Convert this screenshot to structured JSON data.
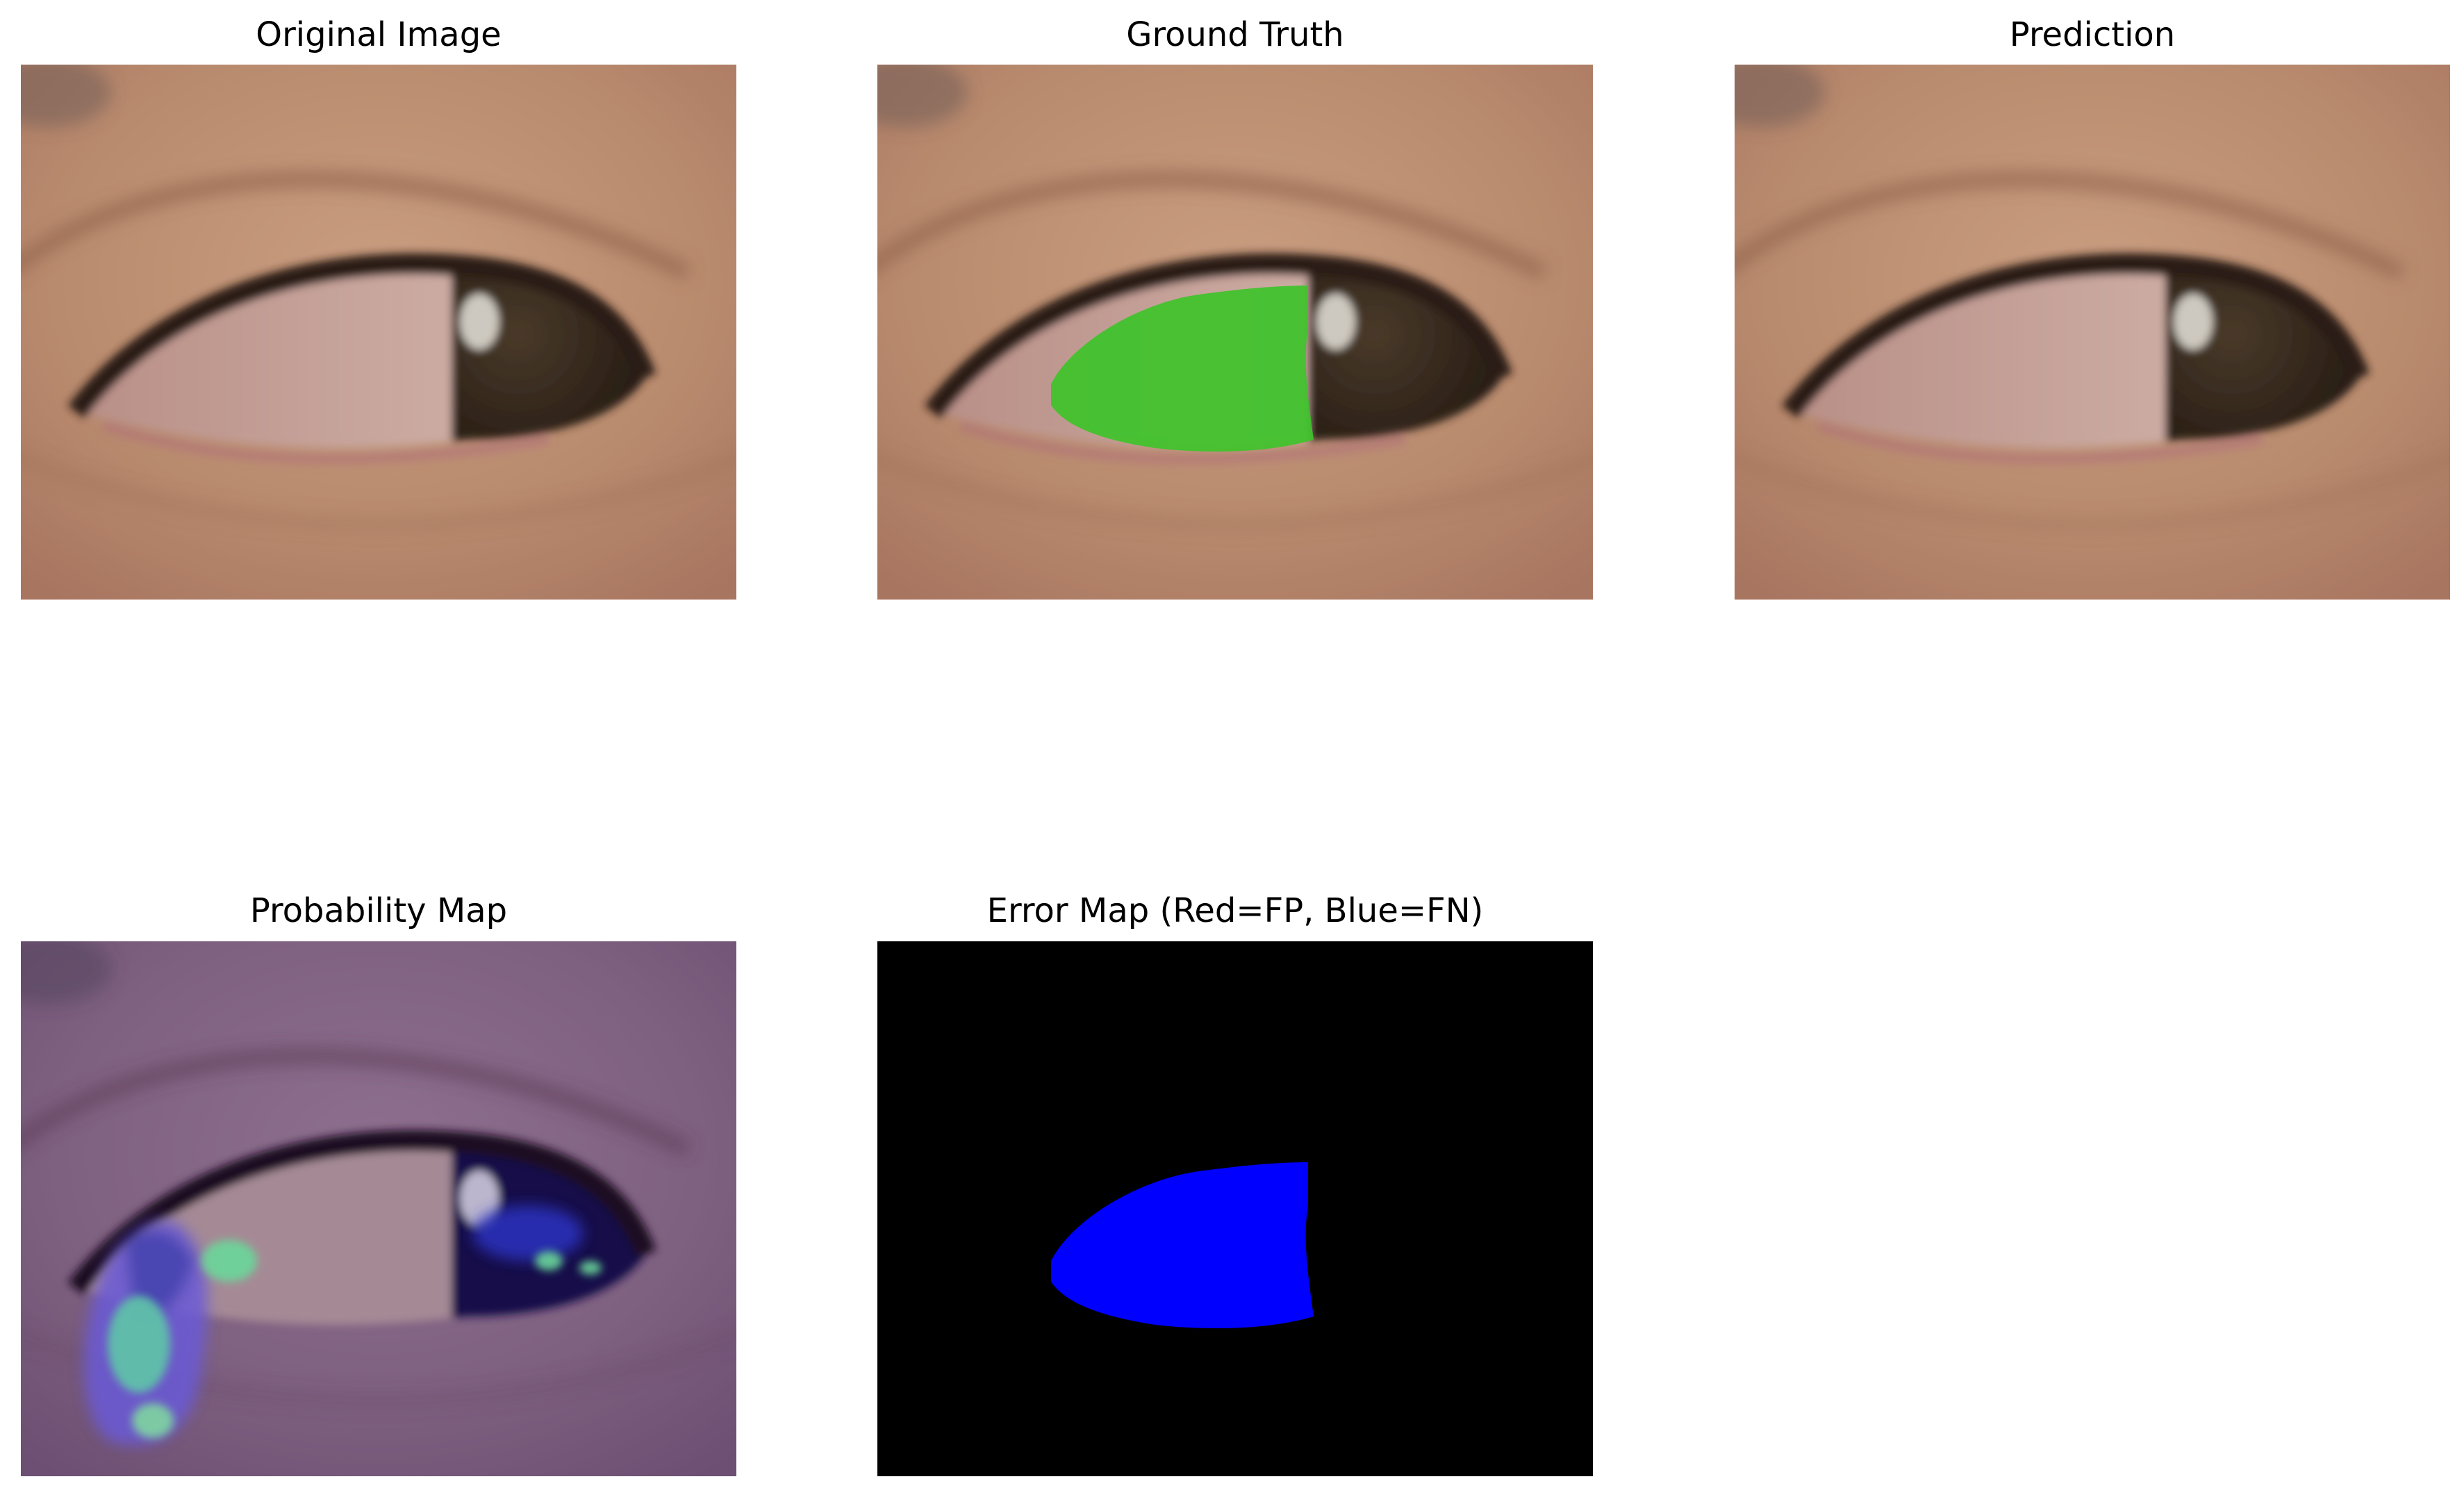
{
  "figure": {
    "panels": [
      {
        "id": "original",
        "title": "Original Image"
      },
      {
        "id": "ground_truth",
        "title": "Ground Truth"
      },
      {
        "id": "prediction",
        "title": "Prediction"
      },
      {
        "id": "probability",
        "title": "Probability Map"
      },
      {
        "id": "error",
        "title": "Error Map (Red=FP, Blue=FN)"
      }
    ]
  },
  "colors": {
    "skin": "#b98c70",
    "mask_green": "#3ec32a",
    "false_negative_blue": "#0000ff",
    "false_positive_red": "#ff0000",
    "error_background": "#000000",
    "probability_tint": "#7b5c8a",
    "probability_highlight": "#6bd89a"
  }
}
